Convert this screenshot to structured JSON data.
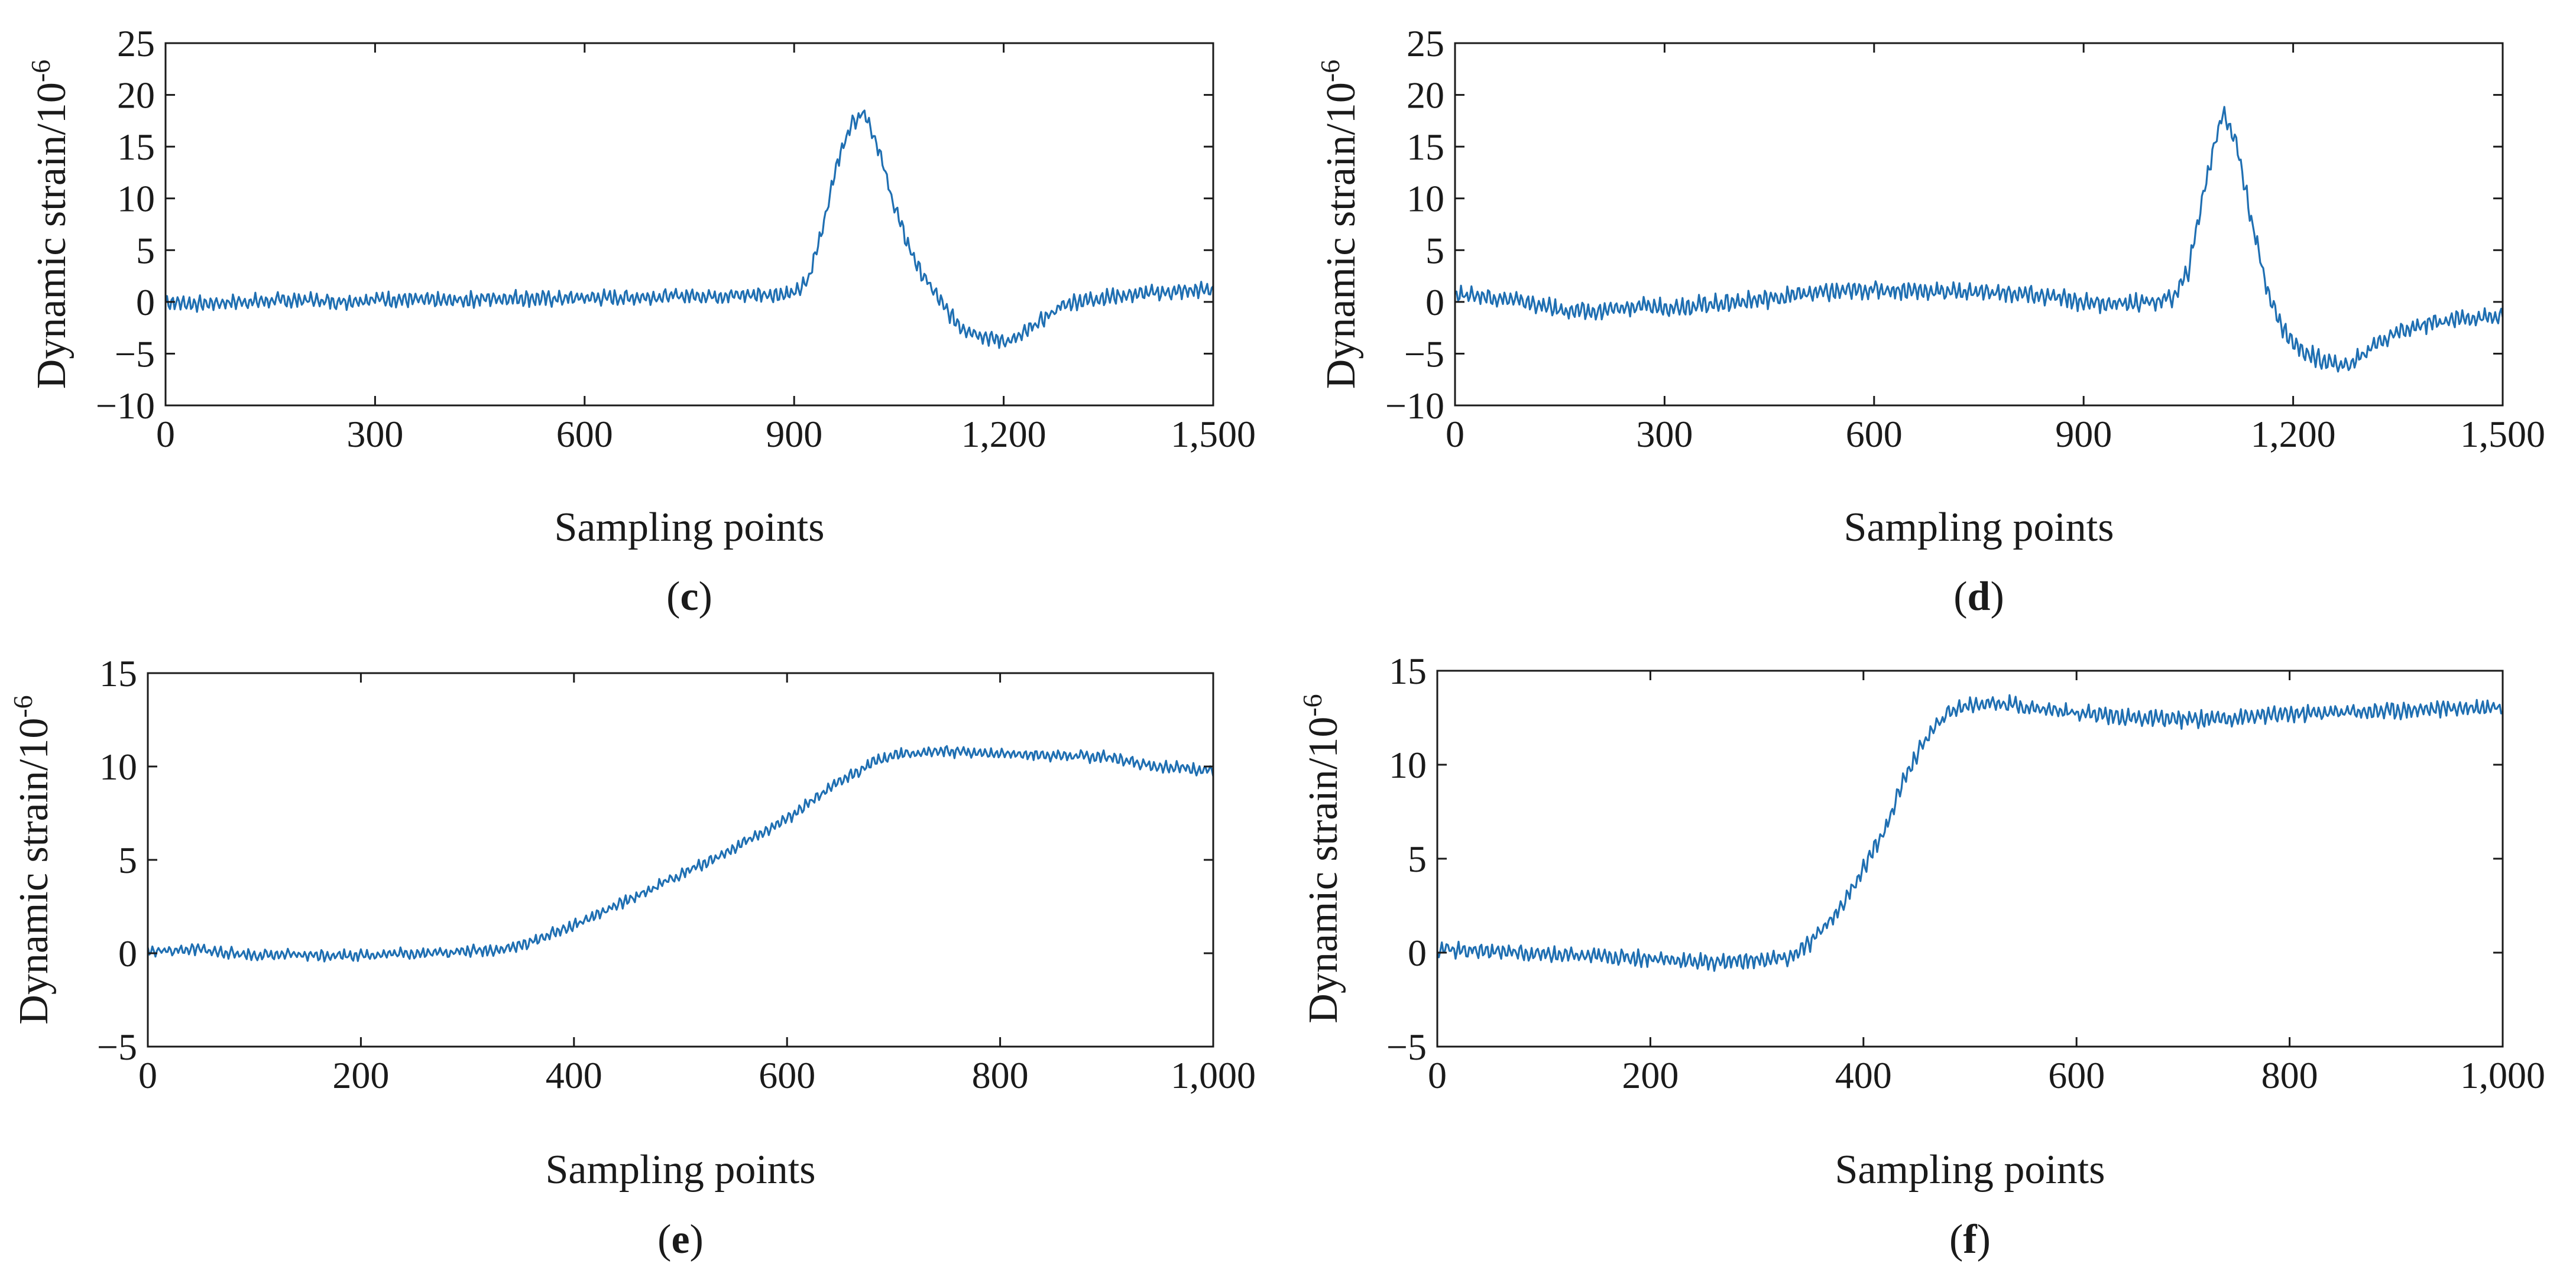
{
  "chart_data": [
    {
      "id": "c",
      "panel_label": "c",
      "type": "line",
      "title": "",
      "xlabel": "Sampling points",
      "ylabel": "Dynamic strain/10",
      "ylabel_exponent": "-6",
      "xlim": [
        0,
        1500
      ],
      "ylim": [
        -10,
        25
      ],
      "xticks": [
        0,
        300,
        600,
        900,
        1200,
        1500
      ],
      "xtick_labels": [
        "0",
        "300",
        "600",
        "900",
        "1,200",
        "1,500"
      ],
      "yticks": [
        -10,
        -5,
        0,
        5,
        10,
        15,
        20,
        25
      ],
      "ytick_labels": [
        "−10",
        "−5",
        "0",
        "5",
        "10",
        "15",
        "20",
        "25"
      ],
      "color": "#1f6fb2",
      "series": [
        {
          "name": "Dynamic strain",
          "x": [
            0,
            50,
            100,
            150,
            200,
            250,
            300,
            350,
            400,
            450,
            500,
            550,
            600,
            650,
            700,
            750,
            800,
            850,
            900,
            920,
            940,
            960,
            980,
            1000,
            1020,
            1040,
            1060,
            1080,
            1100,
            1120,
            1140,
            1160,
            1180,
            1200,
            1220,
            1240,
            1260,
            1280,
            1300,
            1350,
            1400,
            1450,
            1500
          ],
          "y": [
            0,
            -0.2,
            0,
            0.1,
            0.2,
            0,
            0.3,
            0.2,
            0.1,
            0.3,
            0.4,
            0.3,
            0.4,
            0.4,
            0.5,
            0.6,
            0.6,
            0.7,
            0.8,
            2,
            7,
            13,
            17,
            18.5,
            15,
            10,
            6,
            3,
            1,
            -1,
            -2.5,
            -3,
            -3.5,
            -3.8,
            -3.5,
            -2.5,
            -1.5,
            -0.5,
            0,
            0.5,
            0.8,
            1,
            1.2
          ],
          "noise": 0.6
        }
      ]
    },
    {
      "id": "d",
      "panel_label": "d",
      "type": "line",
      "title": "",
      "xlabel": "Sampling points",
      "ylabel": "Dynamic strain/10",
      "ylabel_exponent": "-6",
      "xlim": [
        0,
        1500
      ],
      "ylim": [
        -10,
        25
      ],
      "xticks": [
        0,
        300,
        600,
        900,
        1200,
        1500
      ],
      "xtick_labels": [
        "0",
        "300",
        "600",
        "900",
        "1,200",
        "1,500"
      ],
      "yticks": [
        -10,
        -5,
        0,
        5,
        10,
        15,
        20,
        25
      ],
      "ytick_labels": [
        "−10",
        "−5",
        "0",
        "5",
        "10",
        "15",
        "20",
        "25"
      ],
      "color": "#1f6fb2",
      "series": [
        {
          "name": "Dynamic strain",
          "x": [
            0,
            50,
            100,
            150,
            200,
            250,
            300,
            350,
            400,
            450,
            500,
            550,
            600,
            650,
            700,
            750,
            800,
            850,
            900,
            950,
            1000,
            1030,
            1050,
            1070,
            1090,
            1100,
            1120,
            1140,
            1160,
            1180,
            1200,
            1220,
            1240,
            1260,
            1280,
            1300,
            1320,
            1350,
            1400,
            1450,
            1500
          ],
          "y": [
            0.8,
            0.5,
            0,
            -0.8,
            -1,
            -0.5,
            -0.5,
            -0.3,
            0,
            0.3,
            0.8,
            1,
            1.2,
            1.1,
            1,
            1,
            0.8,
            0.5,
            0,
            -0.2,
            0,
            0.5,
            3,
            10,
            16,
            18.5,
            15,
            8,
            2,
            -2,
            -4,
            -5,
            -5.5,
            -6,
            -6.2,
            -5,
            -4,
            -3,
            -2,
            -1.5,
            -1.5
          ],
          "noise": 0.7
        }
      ]
    },
    {
      "id": "e",
      "panel_label": "e",
      "type": "line",
      "title": "",
      "xlabel": "Sampling points",
      "ylabel": "Dynamic strain/10",
      "ylabel_exponent": "-6",
      "xlim": [
        0,
        1000
      ],
      "ylim": [
        -5,
        15
      ],
      "xticks": [
        0,
        200,
        400,
        600,
        800,
        1000
      ],
      "xtick_labels": [
        "0",
        "200",
        "400",
        "600",
        "800",
        "1,000"
      ],
      "yticks": [
        -5,
        0,
        5,
        10,
        15
      ],
      "ytick_labels": [
        "−5",
        "0",
        "5",
        "10",
        "15"
      ],
      "color": "#1f6fb2",
      "series": [
        {
          "name": "Dynamic strain",
          "x": [
            0,
            50,
            60,
            100,
            150,
            200,
            250,
            300,
            330,
            350,
            400,
            450,
            500,
            550,
            600,
            650,
            680,
            700,
            720,
            750,
            800,
            850,
            900,
            950,
            1000
          ],
          "y": [
            0.1,
            0.2,
            0.1,
            -0.1,
            -0.1,
            -0.1,
            0,
            0.1,
            0.2,
            0.4,
            1.5,
            2.8,
            4.2,
            5.6,
            7.2,
            9.2,
            10.2,
            10.6,
            10.7,
            10.8,
            10.7,
            10.6,
            10.5,
            10.0,
            9.8
          ],
          "noise": 0.25
        }
      ]
    },
    {
      "id": "f",
      "panel_label": "f",
      "type": "line",
      "title": "",
      "xlabel": "Sampling points",
      "ylabel": "Dynamic strain/10",
      "ylabel_exponent": "-6",
      "xlim": [
        0,
        1000
      ],
      "ylim": [
        -5,
        15
      ],
      "xticks": [
        0,
        200,
        400,
        600,
        800,
        1000
      ],
      "xtick_labels": [
        "0",
        "200",
        "400",
        "600",
        "800",
        "1,000"
      ],
      "yticks": [
        -5,
        0,
        5,
        10,
        15
      ],
      "ytick_labels": [
        "−5",
        "0",
        "5",
        "10",
        "15"
      ],
      "color": "#1f6fb2",
      "series": [
        {
          "name": "Dynamic strain",
          "x": [
            0,
            50,
            100,
            150,
            200,
            250,
            300,
            330,
            350,
            380,
            400,
            420,
            440,
            460,
            480,
            500,
            520,
            540,
            560,
            600,
            650,
            700,
            750,
            800,
            850,
            900,
            950,
            1000
          ],
          "y": [
            0.2,
            0.1,
            -0.1,
            -0.2,
            -0.3,
            -0.5,
            -0.4,
            -0.3,
            0.5,
            2.5,
            4.5,
            6.5,
            9.5,
            11.5,
            12.8,
            13.2,
            13.3,
            13.2,
            13.0,
            12.8,
            12.5,
            12.4,
            12.5,
            12.7,
            12.8,
            12.9,
            13.0,
            13.1
          ],
          "noise": 0.35
        }
      ]
    }
  ]
}
